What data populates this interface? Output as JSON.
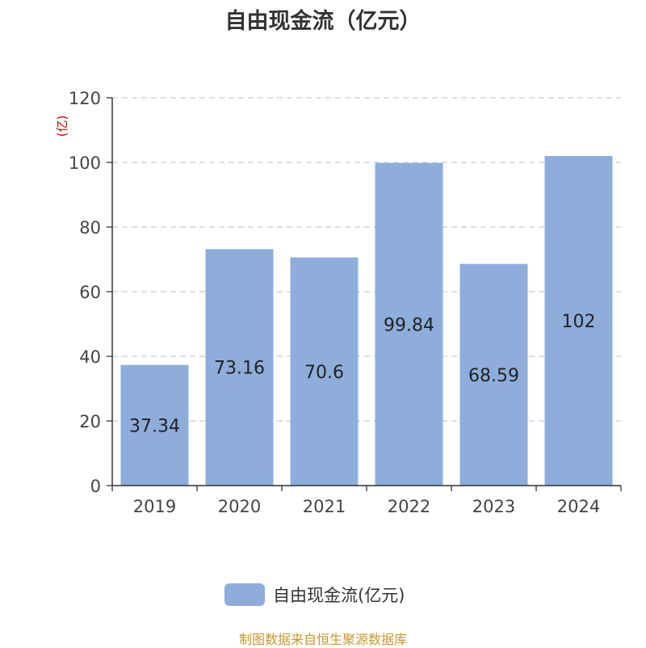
{
  "chart_data": {
    "type": "bar",
    "title": "自由现金流（亿元）",
    "ylabel": "(亿)",
    "categories": [
      "2019",
      "2020",
      "2021",
      "2022",
      "2023",
      "2024"
    ],
    "values": [
      37.34,
      73.16,
      70.6,
      99.84,
      68.59,
      102
    ],
    "data_labels": [
      "37.34",
      "73.16",
      "70.6",
      "99.84",
      "68.59",
      "102"
    ],
    "ylim": [
      0,
      120
    ],
    "yticks": [
      0,
      20,
      40,
      60,
      80,
      100,
      120
    ],
    "series": [
      {
        "name": "自由现金流(亿元)",
        "values": [
          37.34,
          73.16,
          70.6,
          99.84,
          68.59,
          102
        ]
      }
    ],
    "grid": true,
    "legend_position": "bottom-center",
    "colors": {
      "bar": "#8eaddb",
      "grid": "#cccccc",
      "axis": "#333333",
      "ylabel": "#cc0000"
    }
  },
  "source": "制图数据来自恒生聚源数据库"
}
